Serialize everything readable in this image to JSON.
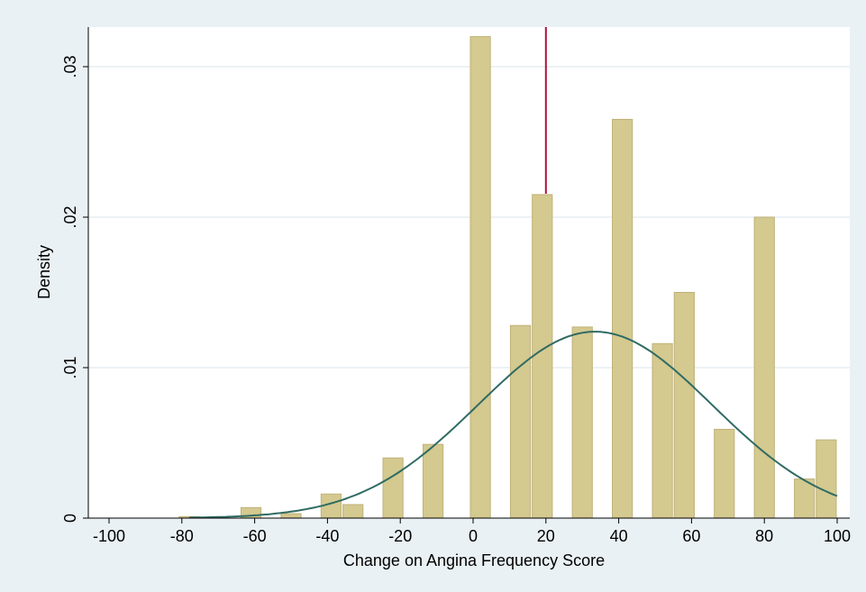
{
  "chart_data": {
    "type": "bar",
    "xlabel": "Change on Angina Frequency Score",
    "ylabel": "Density",
    "xlim": [
      -100,
      100
    ],
    "ylim": [
      0,
      0.0328
    ],
    "x_ticks": [
      "-100",
      "-80",
      "-60",
      "-40",
      "-20",
      "0",
      "20",
      "40",
      "60",
      "80",
      "100"
    ],
    "y_ticks": [
      "0",
      ".01",
      ".02",
      ".03"
    ],
    "grid": true,
    "bin_width": 5.5,
    "bars": [
      {
        "x": -78,
        "value": 0.0001
      },
      {
        "x": -61,
        "value": 0.0007
      },
      {
        "x": -50,
        "value": 0.0003
      },
      {
        "x": -39,
        "value": 0.0016
      },
      {
        "x": -33,
        "value": 0.0009
      },
      {
        "x": -22,
        "value": 0.004
      },
      {
        "x": -11,
        "value": 0.0049
      },
      {
        "x": 2,
        "value": 0.032
      },
      {
        "x": 13,
        "value": 0.0128
      },
      {
        "x": 19,
        "value": 0.0215
      },
      {
        "x": 30,
        "value": 0.0127
      },
      {
        "x": 41,
        "value": 0.0265
      },
      {
        "x": 52,
        "value": 0.0116
      },
      {
        "x": 58,
        "value": 0.015
      },
      {
        "x": 69,
        "value": 0.0059
      },
      {
        "x": 80,
        "value": 0.02
      },
      {
        "x": 91,
        "value": 0.0026
      },
      {
        "x": 97,
        "value": 0.0052
      }
    ],
    "normal_curve": {
      "mean": 33.5,
      "sd": 32.2,
      "x_range": [
        -78,
        100
      ]
    },
    "reference_line": {
      "x": 20
    },
    "colors": {
      "bar": "#d4c98f",
      "bar_edge": "#bfb27a",
      "curve": "#2f6b63",
      "reference_line": "#b0103f",
      "grid": "#e6eef3",
      "plot_background": "#ffffff",
      "outer_background": "#eaf1f5"
    }
  }
}
